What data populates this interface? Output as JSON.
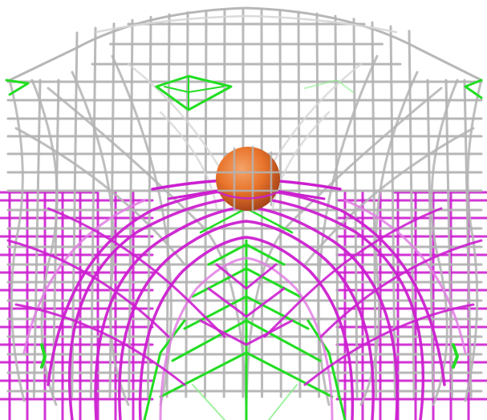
{
  "scene": {
    "background": "#ffffff",
    "colors": {
      "upper_frame": "#b3b3b3",
      "upper_frame_light": "#d6d6d6",
      "lower_frame": "#cc1fd0",
      "lower_frame_light": "#e07ee3",
      "green_edges": "#22dd22",
      "green_light": "#88ee88",
      "ball": "#e8732a",
      "ball_highlight": "#f4a46a",
      "ball_shadow": "#a9461a"
    },
    "objects": [
      {
        "kind": "wireframe",
        "name": "upper-gray-cage",
        "material": "gray-metal"
      },
      {
        "kind": "wireframe",
        "name": "lower-magenta-cage",
        "material": "magenta-metal"
      },
      {
        "kind": "wireframe",
        "name": "green-edge-highlights",
        "material": "green"
      },
      {
        "kind": "sphere",
        "name": "orange-ball",
        "material": "orange"
      }
    ]
  }
}
